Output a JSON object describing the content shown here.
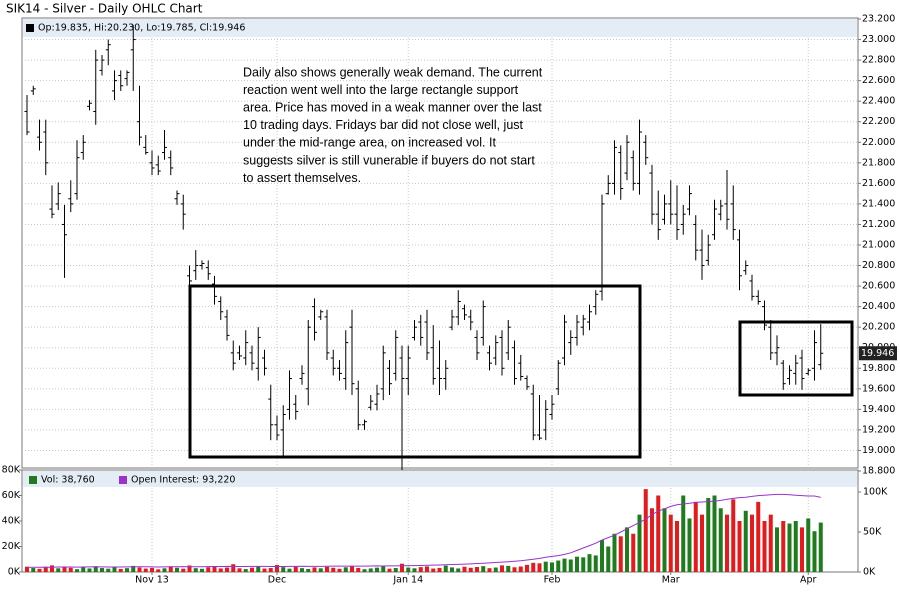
{
  "chart_data": [
    {
      "type": "ohlc",
      "title": "SIK14 - Silver - Daily OHLC Chart",
      "name": "Op:19.835, Hi:20.230, Lo:19.785, Cl:19.946",
      "color": "#000000",
      "grid": true,
      "annotation": [
        "Daily also shows generally weak demand.  The current",
        "reaction went well into the large rectangle support",
        "area.  Price has moved in a weak manner over the last",
        "10 trading days.  Fridays bar did not close well, just",
        "under the mid-range area, on increased vol.  It",
        "suggests silver is still vunerable if buyers do not start",
        "to assert themselves."
      ],
      "ylim": [
        18.8,
        23.2
      ],
      "yticks": [
        {
          "value": 18.8,
          "label": "18.800"
        },
        {
          "value": 19.0,
          "label": "19.000"
        },
        {
          "value": 19.2,
          "label": "19.200"
        },
        {
          "value": 19.4,
          "label": "19.400"
        },
        {
          "value": 19.6,
          "label": "19.600"
        },
        {
          "value": 19.8,
          "label": "19.800"
        },
        {
          "value": 20.0,
          "label": "20.000"
        },
        {
          "value": 20.2,
          "label": "20.200"
        },
        {
          "value": 20.4,
          "label": "20.400"
        },
        {
          "value": 20.6,
          "label": "20.600"
        },
        {
          "value": 20.8,
          "label": "20.800"
        },
        {
          "value": 21.0,
          "label": "21.000"
        },
        {
          "value": 21.2,
          "label": "21.200"
        },
        {
          "value": 21.4,
          "label": "21.400"
        },
        {
          "value": 21.6,
          "label": "21.600"
        },
        {
          "value": 21.8,
          "label": "21.800"
        },
        {
          "value": 22.0,
          "label": "22.000"
        },
        {
          "value": 22.2,
          "label": "22.200"
        },
        {
          "value": 22.4,
          "label": "22.400"
        },
        {
          "value": 22.6,
          "label": "22.600"
        },
        {
          "value": 22.8,
          "label": "22.800"
        },
        {
          "value": 23.0,
          "label": "23.000"
        },
        {
          "value": 23.2,
          "label": "23.200"
        }
      ],
      "open": [
        22.3,
        22.5,
        22.05,
        22.1,
        21.35,
        21.4,
        21.2,
        21.45,
        21.5,
        21.9,
        22.35,
        22.3,
        22.7,
        22.9,
        22.5,
        22.65,
        22.62,
        22.9,
        22.2,
        21.95,
        21.8,
        21.78,
        21.9,
        21.85,
        21.45,
        21.4,
        20.7,
        20.75,
        20.8,
        20.78,
        20.62,
        20.45,
        20.3,
        19.95,
        19.95,
        19.9,
        19.95,
        19.8,
        19.9,
        19.5,
        19.25,
        19.2,
        19.4,
        19.45,
        19.7,
        19.6,
        20.4,
        20.3,
        20.3,
        19.9,
        19.8,
        19.7,
        20.2,
        19.6,
        19.25,
        19.42,
        19.45,
        19.6,
        19.8,
        19.75,
        19.9,
        19.7,
        20.1,
        20.25,
        20.25,
        20.0,
        19.8,
        19.7,
        20.2,
        20.3,
        20.38,
        20.3,
        20.1,
        20.1,
        19.95,
        19.9,
        20.1,
        19.95,
        20.0,
        19.85,
        19.7,
        19.55,
        19.15,
        19.2,
        19.35,
        19.6,
        19.9,
        20.05,
        20.1,
        20.2,
        20.25,
        20.4,
        20.55,
        21.5,
        21.6,
        21.9,
        21.7,
        21.85,
        21.6,
        22.0,
        21.7,
        21.3,
        21.25,
        21.4,
        21.3,
        21.2,
        21.35,
        21.2,
        20.95,
        20.85,
        21.1,
        21.3,
        21.4,
        21.4,
        21.05,
        20.75,
        20.65,
        20.5,
        20.4,
        20.2,
        19.95,
        19.85,
        19.7,
        19.75,
        19.9,
        19.75,
        19.8,
        19.835
      ],
      "high": [
        22.46,
        22.55,
        22.22,
        22.22,
        21.58,
        21.61,
        21.39,
        21.63,
        22.02,
        22.07,
        22.41,
        22.9,
        22.85,
        23.0,
        22.7,
        22.7,
        22.7,
        23.14,
        22.55,
        22.07,
        21.92,
        21.87,
        22.12,
        21.92,
        21.53,
        21.49,
        20.8,
        20.95,
        20.85,
        20.85,
        20.7,
        20.5,
        20.37,
        20.07,
        20.02,
        20.17,
        20.02,
        20.2,
        19.98,
        19.64,
        19.34,
        19.44,
        19.78,
        19.54,
        19.83,
        20.27,
        20.48,
        20.37,
        20.37,
        19.98,
        19.88,
        20.17,
        20.37,
        19.68,
        19.3,
        19.54,
        19.64,
        20.02,
        19.88,
        20.17,
        20.02,
        20.02,
        20.27,
        20.32,
        20.37,
        20.22,
        20.07,
        19.88,
        20.37,
        20.56,
        20.42,
        20.37,
        20.17,
        20.46,
        20.02,
        20.12,
        20.17,
        20.27,
        20.07,
        19.93,
        19.73,
        19.64,
        19.54,
        19.49,
        19.54,
        19.88,
        20.32,
        20.17,
        20.32,
        20.32,
        20.42,
        20.56,
        21.49,
        21.68,
        22.02,
        21.97,
        22.07,
        21.92,
        22.22,
        22.07,
        21.78,
        21.53,
        21.49,
        21.63,
        21.58,
        21.39,
        21.58,
        21.29,
        21.15,
        21.1,
        21.44,
        21.44,
        21.73,
        21.58,
        21.15,
        20.85,
        20.71,
        20.56,
        20.46,
        20.27,
        20.12,
        19.88,
        19.83,
        19.93,
        19.98,
        19.8,
        20.17,
        20.23
      ],
      "low": [
        22.07,
        22.46,
        21.92,
        21.68,
        21.26,
        21.34,
        20.68,
        21.32,
        21.44,
        21.83,
        22.31,
        22.17,
        22.65,
        22.75,
        22.41,
        22.5,
        22.55,
        22.5,
        21.97,
        21.88,
        21.68,
        21.68,
        21.83,
        21.68,
        21.39,
        21.15,
        20.56,
        20.66,
        20.76,
        20.66,
        20.42,
        20.27,
        20.07,
        19.78,
        19.88,
        19.83,
        19.78,
        19.68,
        19.73,
        19.1,
        19.1,
        18.95,
        19.3,
        19.3,
        19.64,
        19.44,
        20.07,
        20.27,
        19.88,
        19.73,
        19.68,
        19.59,
        19.54,
        19.2,
        19.2,
        19.39,
        19.39,
        19.49,
        19.54,
        19.68,
        18.81,
        19.54,
        20.07,
        20.02,
        19.88,
        19.64,
        19.54,
        19.59,
        20.17,
        20.22,
        20.27,
        20.17,
        19.88,
        20.02,
        19.78,
        19.83,
        19.73,
        19.88,
        19.64,
        19.68,
        19.59,
        19.1,
        19.1,
        19.1,
        19.3,
        19.54,
        19.83,
        19.93,
        20.02,
        20.12,
        20.17,
        20.32,
        20.46,
        21.49,
        21.49,
        21.44,
        21.63,
        21.53,
        21.49,
        21.78,
        21.2,
        21.05,
        21.2,
        21.2,
        21.05,
        21.1,
        21.29,
        20.85,
        20.66,
        20.8,
        21.05,
        21.24,
        21.15,
        21.05,
        20.56,
        20.71,
        20.46,
        20.42,
        20.17,
        19.88,
        19.83,
        19.59,
        19.64,
        19.64,
        19.59,
        19.73,
        19.68,
        19.785
      ],
      "close": [
        22.1,
        22.52,
        22.0,
        21.8,
        21.3,
        21.5,
        21.1,
        21.4,
        21.85,
        22.0,
        22.38,
        22.8,
        22.8,
        22.95,
        22.6,
        22.55,
        22.68,
        23.0,
        22.05,
        21.9,
        21.75,
        21.72,
        21.95,
        21.75,
        21.5,
        21.3,
        20.65,
        20.8,
        20.82,
        20.72,
        20.5,
        20.35,
        20.12,
        19.85,
        19.92,
        20.05,
        19.85,
        20.1,
        19.8,
        19.25,
        19.15,
        19.35,
        19.7,
        19.38,
        19.75,
        20.2,
        20.15,
        20.35,
        19.95,
        19.8,
        19.75,
        20.05,
        19.65,
        19.25,
        19.28,
        19.48,
        19.55,
        19.95,
        19.65,
        20.1,
        19.7,
        19.9,
        20.2,
        20.1,
        19.95,
        19.7,
        19.7,
        19.8,
        20.3,
        20.45,
        20.32,
        20.25,
        19.95,
        20.4,
        19.85,
        20.05,
        19.8,
        20.2,
        19.7,
        19.72,
        19.62,
        19.15,
        19.12,
        19.4,
        19.45,
        19.85,
        20.25,
        20.1,
        20.25,
        20.28,
        20.35,
        20.52,
        21.4,
        21.6,
        21.95,
        21.55,
        22.0,
        21.6,
        22.1,
        21.85,
        21.3,
        21.15,
        21.4,
        21.3,
        21.15,
        21.3,
        21.5,
        20.95,
        20.8,
        21.0,
        21.35,
        21.38,
        21.25,
        21.15,
        20.7,
        20.8,
        20.5,
        20.45,
        20.22,
        19.95,
        20.0,
        19.65,
        19.78,
        19.85,
        19.7,
        19.78,
        20.05,
        19.946
      ]
    },
    {
      "type": "bar",
      "categories": [
        null,
        null,
        null,
        null,
        null,
        null,
        null,
        null,
        null,
        null,
        null,
        null,
        null,
        null,
        null,
        null,
        null,
        null,
        null,
        null,
        "Nov 13",
        null,
        null,
        null,
        null,
        null,
        null,
        null,
        null,
        null,
        null,
        null,
        null,
        null,
        null,
        null,
        null,
        null,
        null,
        null,
        "Dec",
        null,
        null,
        null,
        null,
        null,
        null,
        null,
        null,
        null,
        null,
        null,
        null,
        null,
        null,
        null,
        null,
        null,
        null,
        null,
        null,
        "Jan 14",
        null,
        null,
        null,
        null,
        null,
        null,
        null,
        null,
        null,
        null,
        null,
        null,
        null,
        null,
        null,
        null,
        null,
        null,
        null,
        null,
        null,
        null,
        "Feb",
        null,
        null,
        null,
        null,
        null,
        null,
        null,
        null,
        null,
        null,
        null,
        null,
        null,
        null,
        null,
        null,
        null,
        null,
        "Mar",
        null,
        null,
        null,
        null,
        null,
        null,
        null,
        null,
        null,
        null,
        null,
        null,
        null,
        null,
        null,
        null,
        null,
        null,
        null,
        null,
        null,
        "Apr",
        null,
        null
      ],
      "ylim": [
        0,
        80000
      ],
      "yticks": [
        {
          "value": 0,
          "label": "0K"
        },
        {
          "value": 20000,
          "label": "20K"
        },
        {
          "value": 40000,
          "label": "40K"
        },
        {
          "value": 60000,
          "label": "60K"
        },
        {
          "value": 80000,
          "label": "80K"
        }
      ],
      "y2lim": [
        0,
        127500
      ],
      "y2ticks": [
        {
          "value": 0,
          "label": "0K"
        },
        {
          "value": 50000,
          "label": "50K"
        },
        {
          "value": 100000,
          "label": "100K"
        }
      ],
      "series": [
        {
          "name": "Vol: 38,760",
          "color": "#1e7b1e",
          "down_color": "#e41a1c",
          "values": [
            4200,
            3100,
            2500,
            3800,
            5200,
            2900,
            4100,
            3300,
            2200,
            3600,
            2800,
            4500,
            3100,
            2600,
            3900,
            2400,
            3000,
            4800,
            3500,
            2700,
            3200,
            2100,
            2900,
            4400,
            3300,
            2600,
            5100,
            3000,
            2500,
            3700,
            4200,
            2800,
            3500,
            6100,
            2900,
            2300,
            3400,
            4600,
            2700,
            3100,
            5500,
            3800,
            2600,
            4200,
            3000,
            2400,
            3600,
            2900,
            4100,
            3300,
            2500,
            3700,
            4900,
            3200,
            2200,
            2800,
            3400,
            4300,
            2600,
            3100,
            6500,
            3500,
            2900,
            3800,
            4400,
            2700,
            3200,
            5000,
            3600,
            2800,
            4100,
            3300,
            3900,
            4600,
            3000,
            3500,
            5200,
            4800,
            3700,
            4300,
            5600,
            7200,
            6800,
            8100,
            7500,
            9000,
            10500,
            9800,
            12000,
            11500,
            14000,
            13000,
            25000,
            20000,
            30000,
            28000,
            35000,
            30000,
            45000,
            65000,
            50000,
            60000,
            50000,
            45000,
            40000,
            60000,
            42000,
            55000,
            45000,
            58000,
            60000,
            50000,
            45000,
            57000,
            40000,
            48000,
            45000,
            55000,
            40000,
            45000,
            35000,
            40000,
            38000,
            40000,
            35000,
            42000,
            32000,
            38760
          ]
        },
        {
          "name": "Open Interest: 93,220",
          "color": "#9933cc",
          "axis": "y2",
          "values": [
            5800,
            5900,
            6000,
            6100,
            6000,
            6200,
            6300,
            6200,
            6100,
            6300,
            6400,
            6500,
            6400,
            6300,
            6200,
            6300,
            6400,
            6500,
            6600,
            6500,
            6400,
            6300,
            6400,
            6500,
            6600,
            6700,
            6600,
            6500,
            6600,
            6700,
            6800,
            6900,
            7000,
            6900,
            6800,
            6900,
            7000,
            7100,
            7000,
            6900,
            6800,
            6900,
            7000,
            7100,
            7200,
            7100,
            7000,
            7100,
            7200,
            7300,
            7400,
            7300,
            7200,
            7300,
            7400,
            7500,
            7600,
            7500,
            7600,
            7700,
            7800,
            7900,
            8000,
            8200,
            8400,
            8600,
            8800,
            9000,
            9300,
            9600,
            9900,
            10200,
            10600,
            11000,
            11400,
            11800,
            12300,
            12800,
            13400,
            14000,
            15000,
            16000,
            17000,
            18500,
            19500,
            20500,
            22000,
            24000,
            27000,
            30000,
            33000,
            36000,
            40000,
            43000,
            46000,
            50000,
            54000,
            58000,
            62000,
            66000,
            72000,
            76000,
            79000,
            82000,
            84000,
            85000,
            86000,
            87000,
            87500,
            88000,
            88500,
            89500,
            91000,
            92000,
            93000,
            93500,
            94500,
            95500,
            96000,
            96500,
            97000,
            97000,
            96500,
            96000,
            95500,
            95000,
            95000,
            93220
          ]
        }
      ]
    }
  ]
}
